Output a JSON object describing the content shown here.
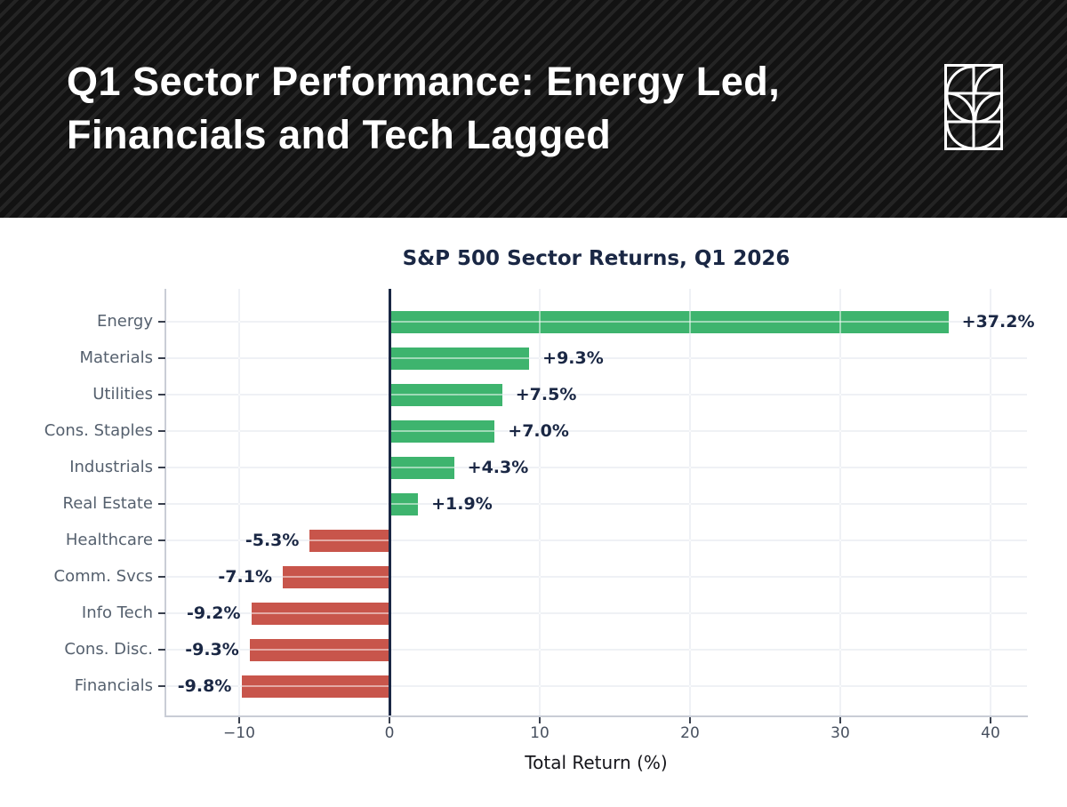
{
  "header": {
    "title_line1": "Q1 Sector Performance: Energy Led,",
    "title_line2": "Financials and Tech Lagged",
    "logo_icon": "quarter-circle-grid-logo"
  },
  "chart_data": {
    "type": "bar",
    "orientation": "horizontal",
    "title": "S&P 500 Sector Returns, Q1 2026",
    "xlabel": "Total Return (%)",
    "ylabel": "",
    "categories": [
      "Energy",
      "Materials",
      "Utilities",
      "Cons. Staples",
      "Industrials",
      "Real Estate",
      "Healthcare",
      "Comm. Svcs",
      "Info Tech",
      "Cons. Disc.",
      "Financials"
    ],
    "values": [
      37.2,
      9.3,
      7.5,
      7.0,
      4.3,
      1.9,
      -5.3,
      -7.1,
      -9.2,
      -9.3,
      -9.8
    ],
    "value_labels": [
      "+37.2%",
      "+9.3%",
      "+7.5%",
      "+7.0%",
      "+4.3%",
      "+1.9%",
      "-5.3%",
      "-7.1%",
      "-9.2%",
      "-9.3%",
      "-9.8%"
    ],
    "x_ticks": [
      -10,
      0,
      10,
      20,
      30,
      40
    ],
    "x_tick_labels": [
      "−10",
      "0",
      "10",
      "20",
      "30",
      "40"
    ],
    "xlim": [
      -14.9,
      42.4
    ],
    "grid": true,
    "legend": "none",
    "positive_color": "#3eb46e",
    "negative_color": "#c8554b",
    "value_label_color": "#1a2744",
    "category_label_color": "#55606e",
    "zero_line_color": "#1a2744",
    "grid_color": "#dfe3ea",
    "spine_color": "#c9cdd6"
  }
}
